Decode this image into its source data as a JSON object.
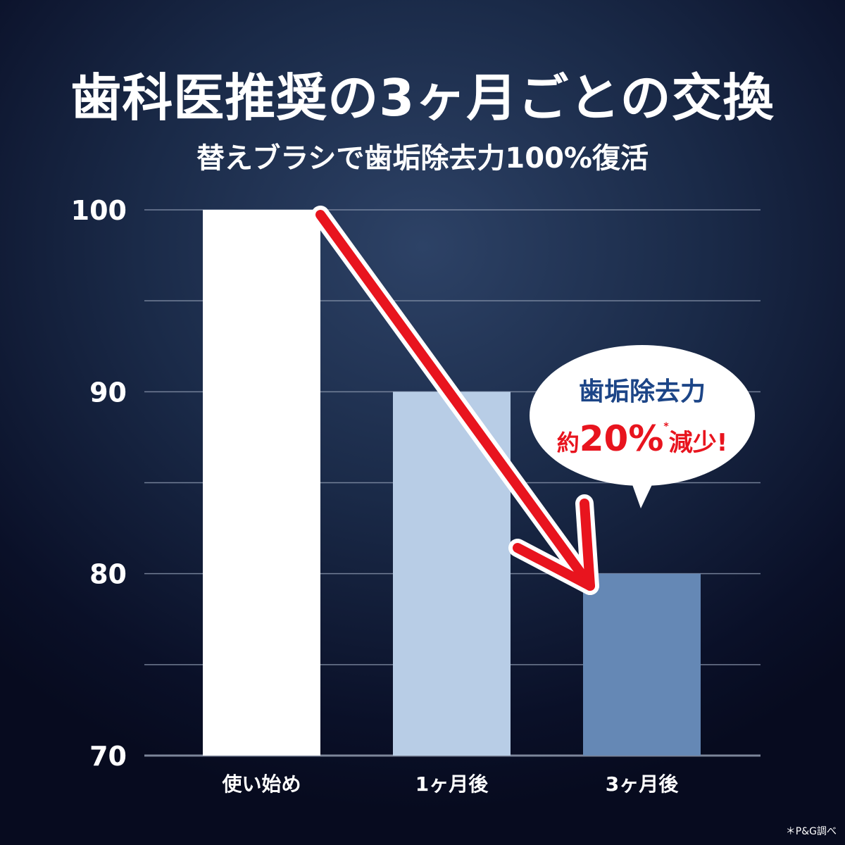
{
  "title": "歯科医推奨の3ヶ月ごとの交換",
  "subtitle": "替えブラシで歯垢除去力100%復活",
  "footnote": "＊P&G調べ",
  "callout": {
    "line1": "歯垢除去力",
    "prefix": "約",
    "value": "20%",
    "asterisk": "*",
    "suffix": "減少!"
  },
  "colors": {
    "bar1": "#ffffff",
    "bar2": "#b8cde6",
    "bar3": "#6588b5",
    "arrow": "#e8141e",
    "grid": "#8a96ad"
  },
  "chart_data": {
    "type": "bar",
    "categories": [
      "使い始め",
      "1ヶ月後",
      "3ヶ月後"
    ],
    "values": [
      100,
      90,
      80
    ],
    "ylim": [
      70,
      100
    ],
    "yticks": [
      70,
      80,
      90,
      100
    ],
    "grid_step": 5,
    "grid": true,
    "annotation": "downward red arrow from 使い始め to 3ヶ月後"
  }
}
